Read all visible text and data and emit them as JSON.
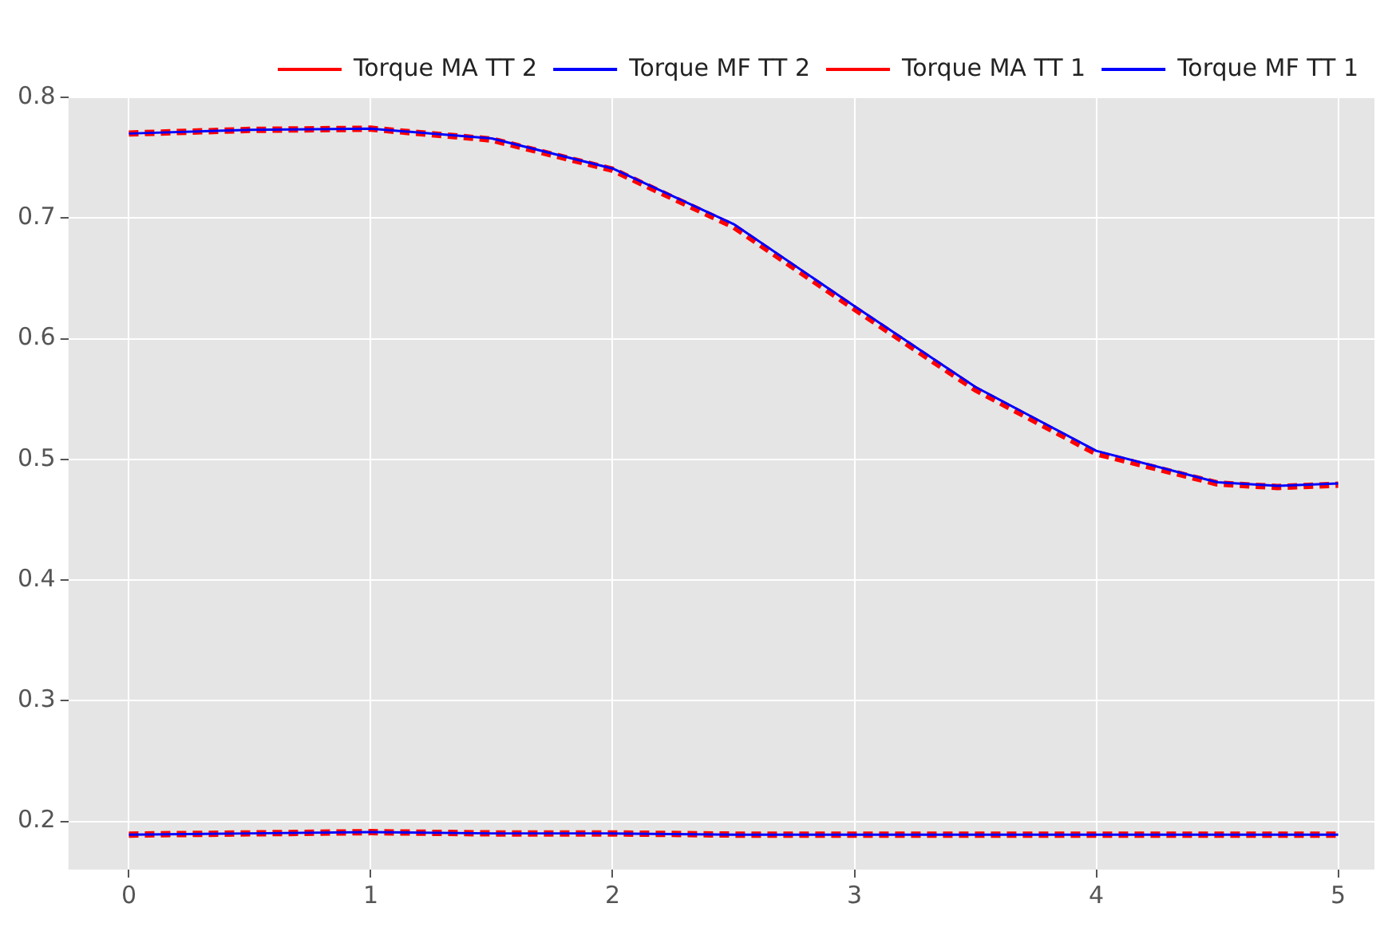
{
  "chart_data": {
    "type": "line",
    "x": [
      0,
      0.5,
      1,
      1.5,
      2,
      2.5,
      3,
      3.5,
      4,
      4.5,
      4.75,
      5
    ],
    "series": [
      {
        "name": "Torque MA TT 2",
        "color": "#ff0000",
        "line_style": "dashed",
        "values": [
          0.77,
          0.773,
          0.774,
          0.765,
          0.74,
          0.693,
          0.625,
          0.558,
          0.505,
          0.48,
          0.477,
          0.479
        ]
      },
      {
        "name": "Torque MF TT 2",
        "color": "#0000ff",
        "line_style": "solid",
        "values": [
          0.77,
          0.773,
          0.774,
          0.766,
          0.741,
          0.695,
          0.627,
          0.56,
          0.507,
          0.481,
          0.478,
          0.48
        ]
      },
      {
        "name": "Torque MA TT 1",
        "color": "#ff0000",
        "line_style": "dashed",
        "values": [
          0.189,
          0.19,
          0.191,
          0.19,
          0.19,
          0.189,
          0.189,
          0.189,
          0.189,
          0.189,
          0.189,
          0.189
        ]
      },
      {
        "name": "Torque MF TT 1",
        "color": "#0000ff",
        "line_style": "solid",
        "values": [
          0.189,
          0.19,
          0.191,
          0.19,
          0.19,
          0.189,
          0.189,
          0.189,
          0.189,
          0.189,
          0.189,
          0.189
        ]
      }
    ],
    "xlim": [
      -0.25,
      5.15
    ],
    "xticks": [
      0,
      1,
      2,
      3,
      4,
      5
    ],
    "ylim": [
      0.16,
      0.8
    ],
    "yticks": [
      0.2,
      0.3,
      0.4,
      0.5,
      0.6,
      0.7,
      0.8
    ],
    "grid": true,
    "legend": "top right",
    "marker": "none"
  }
}
